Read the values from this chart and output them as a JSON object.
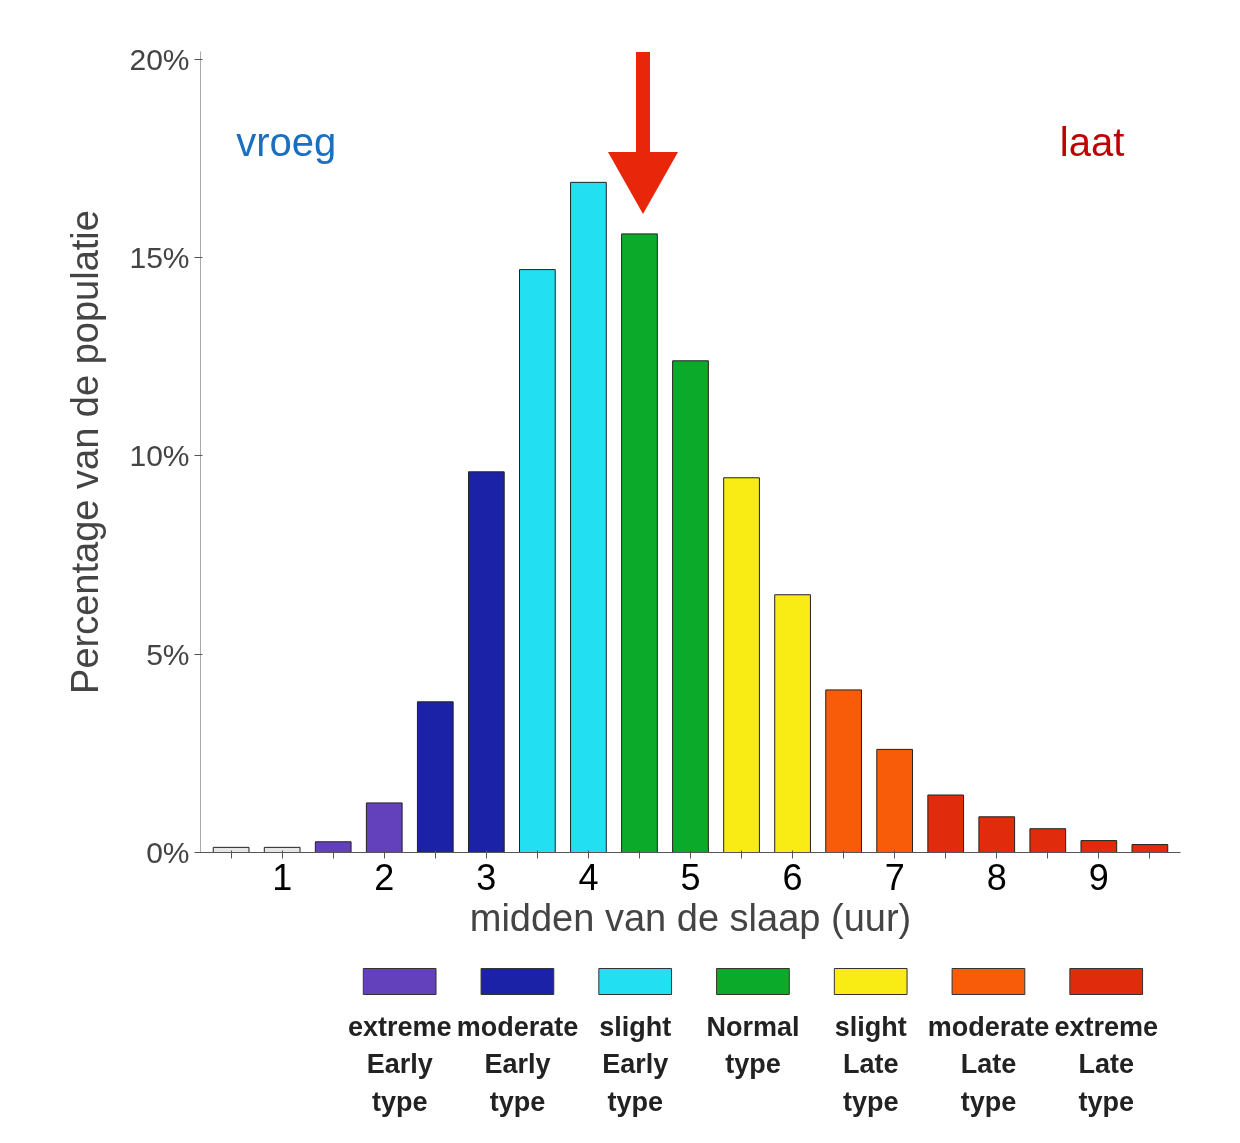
{
  "chart_data": {
    "type": "bar",
    "xlabel": "midden van de slaap (uur)",
    "ylabel": "Percentage van de populatie",
    "categories": [
      null,
      "1",
      null,
      "2",
      null,
      "3",
      null,
      "4",
      null,
      "5",
      null,
      "6",
      null,
      "7",
      null,
      "8",
      null,
      "9",
      null
    ],
    "series": [
      {
        "color": "#e6e6e6",
        "values": [
          0.13,
          0.13,
          null,
          null,
          null,
          null,
          null,
          null,
          null,
          null,
          null,
          null,
          null,
          null,
          null,
          null,
          null,
          null,
          null
        ]
      },
      {
        "name": "extreme\nEarly\ntype",
        "color": "#6340bc",
        "values": [
          null,
          null,
          0.27,
          1.25,
          null,
          null,
          null,
          null,
          null,
          null,
          null,
          null,
          null,
          null,
          null,
          null,
          null,
          null,
          null
        ]
      },
      {
        "name": "moderate\nEarly\ntype",
        "color": "#1c22a8",
        "values": [
          null,
          null,
          null,
          null,
          3.8,
          9.6,
          null,
          null,
          null,
          null,
          null,
          null,
          null,
          null,
          null,
          null,
          null,
          null,
          null
        ]
      },
      {
        "name": "slight\nEarly\ntype",
        "color": "#22e0f2",
        "values": [
          null,
          null,
          null,
          null,
          null,
          null,
          14.7,
          16.9,
          null,
          null,
          null,
          null,
          null,
          null,
          null,
          null,
          null,
          null,
          null
        ]
      },
      {
        "name": "Normal\ntype",
        "color": "#0caa2a",
        "values": [
          null,
          null,
          null,
          null,
          null,
          null,
          null,
          null,
          15.6,
          12.4,
          null,
          null,
          null,
          null,
          null,
          null,
          null,
          null,
          null
        ]
      },
      {
        "name": "slight\nLate\ntype",
        "color": "#f8ec14",
        "values": [
          null,
          null,
          null,
          null,
          null,
          null,
          null,
          null,
          null,
          null,
          9.45,
          6.5,
          null,
          null,
          null,
          null,
          null,
          null,
          null
        ]
      },
      {
        "name": "moderate\nLate\ntype",
        "color": "#f85c08",
        "values": [
          null,
          null,
          null,
          null,
          null,
          null,
          null,
          null,
          null,
          null,
          null,
          null,
          4.1,
          2.6,
          null,
          null,
          null,
          null,
          null
        ]
      },
      {
        "name": "extreme\nLate\ntype",
        "color": "#e02c0c",
        "values": [
          null,
          null,
          null,
          null,
          null,
          null,
          null,
          null,
          null,
          null,
          null,
          null,
          null,
          null,
          1.45,
          0.9,
          0.6,
          0.3,
          0.2
        ]
      }
    ],
    "ylim": [
      0,
      20.2
    ],
    "yticks": [
      {
        "value": 0,
        "label": "0%"
      },
      {
        "value": 5,
        "label": "5%"
      },
      {
        "value": 10,
        "label": "10%"
      },
      {
        "value": 15,
        "label": "15%"
      },
      {
        "value": 20,
        "label": "20%"
      }
    ],
    "annotations": [
      "vroeg",
      "laat"
    ],
    "legend": "bottom",
    "grid": false
  }
}
